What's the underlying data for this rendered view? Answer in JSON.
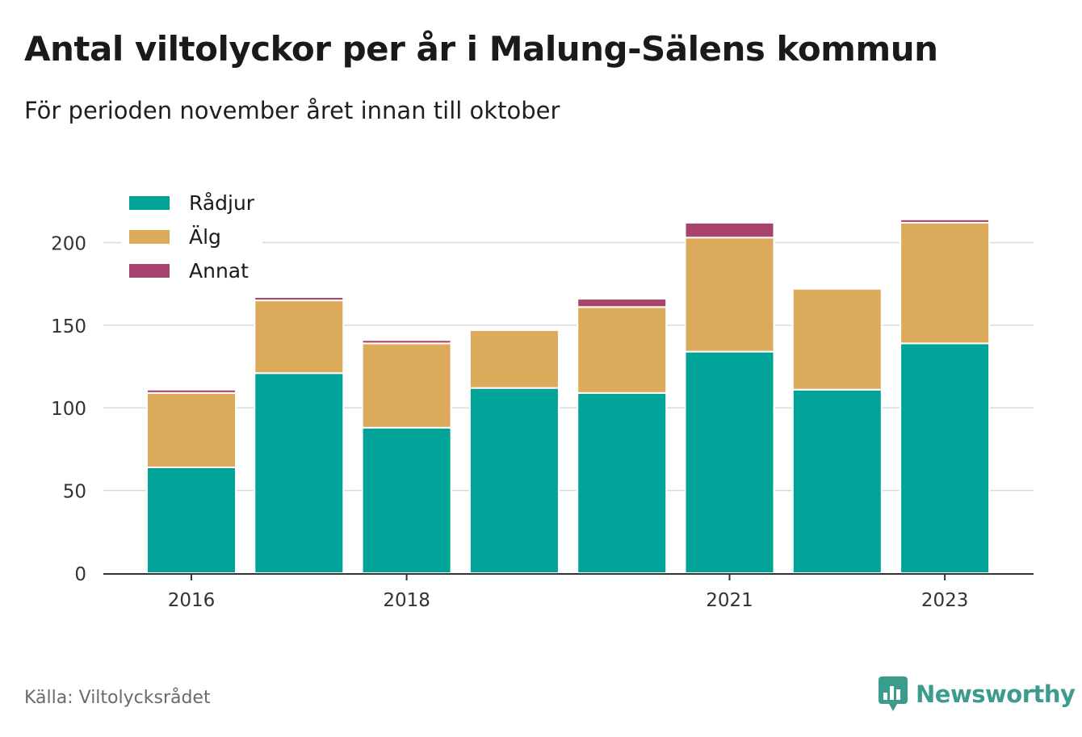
{
  "title": "Antal viltolyckor per år i Malung-Sälens kommun",
  "subtitle": "För perioden november året innan till oktober",
  "source": "Källa: Viltolycksrådet",
  "brand": {
    "name": "Newsworthy",
    "icon": "newsworthy-logo-icon",
    "color": "#3b9c8e"
  },
  "legend": [
    {
      "label": "Rådjur",
      "color": "#00a398"
    },
    {
      "label": "Älg",
      "color": "#dbaa5a"
    },
    {
      "label": "Annat",
      "color": "#a8446b"
    }
  ],
  "chart_data": {
    "type": "bar",
    "stacked": true,
    "categories": [
      "2016",
      "2017",
      "2018",
      "2019",
      "2020",
      "2021",
      "2022",
      "2023"
    ],
    "x_tick_labels": [
      "2016",
      "",
      "2018",
      "",
      "",
      "2021",
      "",
      "2023"
    ],
    "series": [
      {
        "name": "Rådjur",
        "color": "#00a398",
        "values": [
          64,
          121,
          88,
          112,
          109,
          134,
          111,
          139
        ]
      },
      {
        "name": "Älg",
        "color": "#dbaa5a",
        "values": [
          45,
          44,
          51,
          35,
          52,
          69,
          61,
          73
        ]
      },
      {
        "name": "Annat",
        "color": "#a8446b",
        "values": [
          2,
          2,
          2,
          0,
          5,
          9,
          0,
          2
        ]
      }
    ],
    "y_ticks": [
      0,
      50,
      100,
      150,
      200
    ],
    "ylim": [
      0,
      220
    ],
    "grid": true,
    "legend_position": "top-left"
  }
}
